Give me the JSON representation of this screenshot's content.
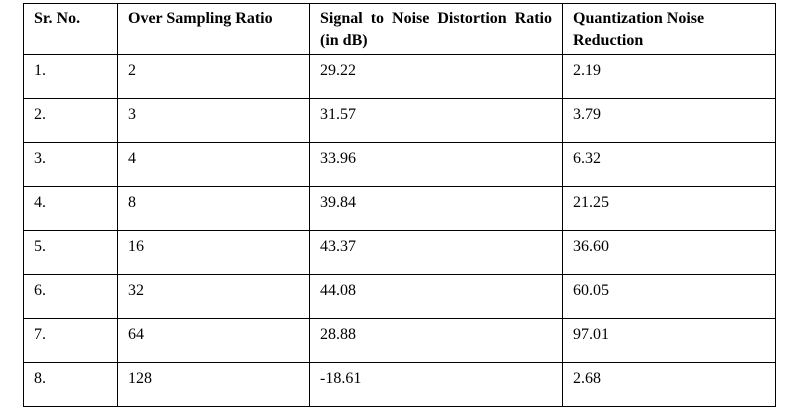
{
  "table": {
    "headers": [
      "Sr. No.",
      "Over Sampling Ratio",
      "Signal to Noise Distortion Ratio (in dB)",
      "Quantization Noise Reduction"
    ],
    "rows": [
      [
        "1.",
        "2",
        "29.22",
        "2.19"
      ],
      [
        "2.",
        "3",
        "31.57",
        "3.79"
      ],
      [
        "3.",
        "4",
        "33.96",
        "6.32"
      ],
      [
        "4.",
        "8",
        "39.84",
        "21.25"
      ],
      [
        "5.",
        "16",
        "43.37",
        "36.60"
      ],
      [
        "6.",
        "32",
        "44.08",
        "60.05"
      ],
      [
        "7.",
        "64",
        "28.88",
        "97.01"
      ],
      [
        "8.",
        "128",
        "-18.61",
        "2.68"
      ]
    ]
  }
}
